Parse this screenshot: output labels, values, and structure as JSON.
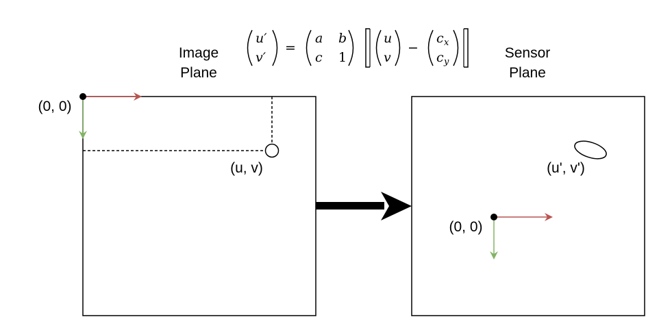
{
  "image_plane": {
    "title_line1": "Image",
    "title_line2": "Plane",
    "origin_label": "(0, 0)",
    "point_label": "(u, v)"
  },
  "sensor_plane": {
    "title_line1": "Sensor",
    "title_line2": "Plane",
    "origin_label": "(0, 0)",
    "point_label": "(u', v')"
  },
  "equation": {
    "lhs_top": "u′",
    "lhs_bottom": "v′",
    "equals": "=",
    "m11": "a",
    "m12": "b",
    "m21": "c",
    "m22": "1",
    "v_top": "u",
    "v_bottom": "v",
    "minus": "−",
    "c_top": "c",
    "c_top_sub": "x",
    "c_bottom": "c",
    "c_bottom_sub": "y"
  },
  "colors": {
    "x_axis": "#b85450",
    "y_axis": "#82b366",
    "outline": "#000000"
  }
}
